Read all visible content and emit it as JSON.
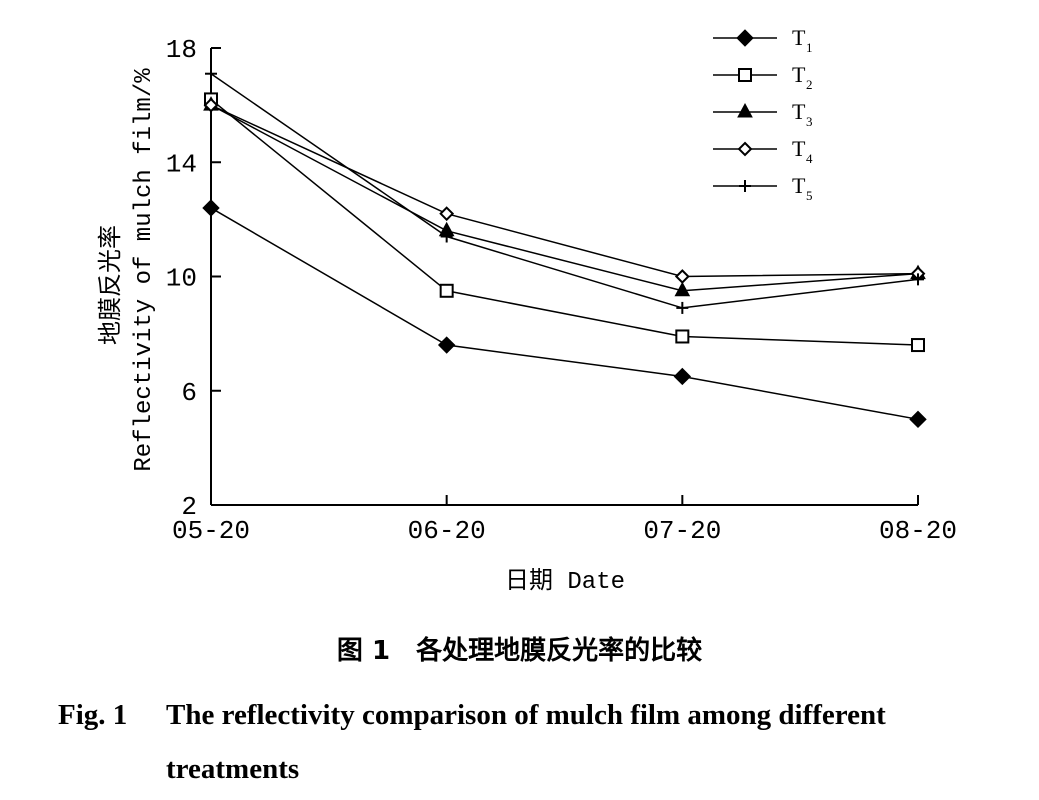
{
  "chart_data": {
    "type": "line",
    "ylabel_cn": "地膜反光率",
    "ylabel_en": "Reflectivity of mulch film/%",
    "xlabel": "日期 Date",
    "categories": [
      "05-20",
      "06-20",
      "07-20",
      "08-20"
    ],
    "yticks": [
      "2",
      "6",
      "10",
      "14",
      "18"
    ],
    "ylim": [
      2,
      18
    ],
    "grid": false,
    "legend_position": "top-right",
    "series": [
      {
        "name": "T",
        "sub": "1",
        "marker": "diamond-filled",
        "values": [
          12.4,
          7.6,
          6.5,
          5.0
        ]
      },
      {
        "name": "T",
        "sub": "2",
        "marker": "square-open",
        "values": [
          16.2,
          9.5,
          7.9,
          7.6
        ]
      },
      {
        "name": "T",
        "sub": "3",
        "marker": "triangle-filled",
        "values": [
          16.0,
          11.6,
          9.5,
          10.1
        ]
      },
      {
        "name": "T",
        "sub": "4",
        "marker": "diamond-open",
        "values": [
          16.0,
          12.2,
          10.0,
          10.1
        ]
      },
      {
        "name": "T",
        "sub": "5",
        "marker": "plus",
        "values": [
          17.1,
          11.4,
          8.9,
          9.9
        ]
      }
    ]
  },
  "caption": {
    "cn": "图 1　各处理地膜反光率的比较",
    "en_label": "Fig. 1",
    "en_text_line1": "The reflectivity comparison of mulch film among different",
    "en_text_line2": "treatments"
  }
}
